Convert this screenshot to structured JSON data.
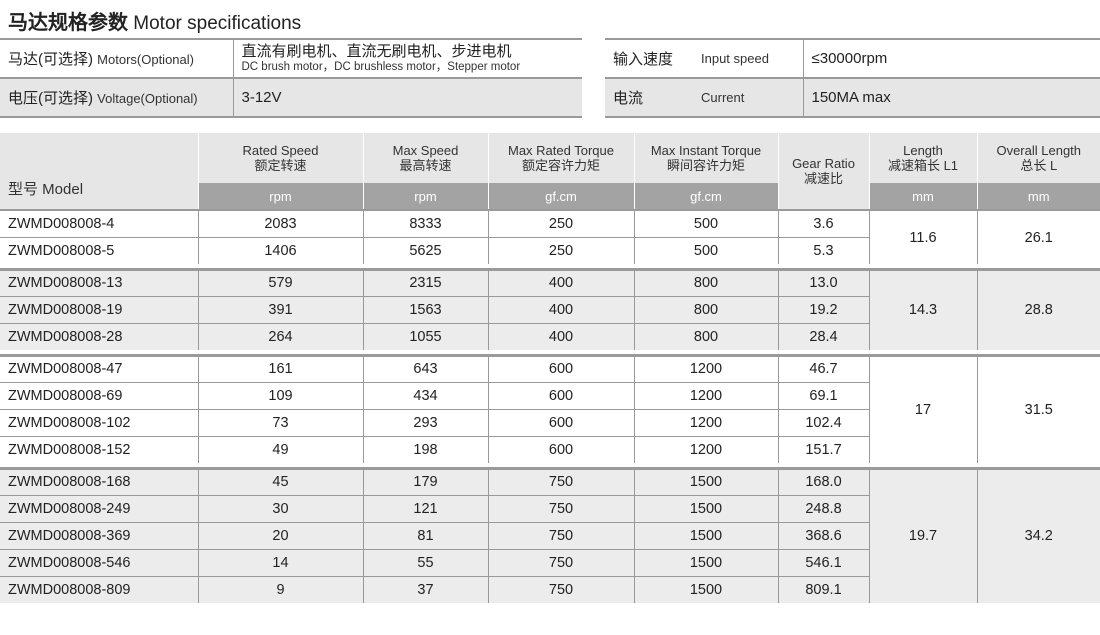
{
  "title": {
    "cn": "马达规格参数",
    "en": "Motor specifications"
  },
  "specs_left": [
    {
      "label_cn": "马达(可选择)",
      "label_en": "Motors(Optional)",
      "value_cn": "直流有刷电机、直流无刷电机、步进电机",
      "value_en": "DC brush motor，DC brushless motor，Stepper motor"
    },
    {
      "label_cn": "电压(可选择)",
      "label_en": "Voltage(Optional)",
      "value": "3-12V"
    }
  ],
  "specs_right": [
    {
      "label_cn": "输入速度",
      "label_en": "Input speed",
      "value": "≤30000rpm"
    },
    {
      "label_cn": "电流",
      "label_en": "Current",
      "value": "150MA max"
    }
  ],
  "table": {
    "model_header": "型号 Model",
    "columns": [
      {
        "en": "Rated Speed",
        "cn": "额定转速",
        "unit": "rpm"
      },
      {
        "en": "Max Speed",
        "cn": "最高转速",
        "unit": "rpm"
      },
      {
        "en": "Max Rated Torque",
        "cn": "额定容许力矩",
        "unit": "gf.cm"
      },
      {
        "en": "Max Instant Torque",
        "cn": "瞬间容许力矩",
        "unit": "gf.cm"
      },
      {
        "en": "Gear Ratio",
        "cn": "减速比",
        "unit": ""
      },
      {
        "en": "Length",
        "cn": "减速箱长 L1",
        "unit": "mm"
      },
      {
        "en": "Overall Length",
        "cn": "总长 L",
        "unit": "mm"
      }
    ],
    "groups": [
      {
        "length": "11.6",
        "overall": "26.1",
        "rows": [
          [
            "ZWMD008008-4",
            "2083",
            "8333",
            "250",
            "500",
            "3.6"
          ],
          [
            "ZWMD008008-5",
            "1406",
            "5625",
            "250",
            "500",
            "5.3"
          ]
        ]
      },
      {
        "length": "14.3",
        "overall": "28.8",
        "rows": [
          [
            "ZWMD008008-13",
            "579",
            "2315",
            "400",
            "800",
            "13.0"
          ],
          [
            "ZWMD008008-19",
            "391",
            "1563",
            "400",
            "800",
            "19.2"
          ],
          [
            "ZWMD008008-28",
            "264",
            "1055",
            "400",
            "800",
            "28.4"
          ]
        ]
      },
      {
        "length": "17",
        "overall": "31.5",
        "rows": [
          [
            "ZWMD008008-47",
            "161",
            "643",
            "600",
            "1200",
            "46.7"
          ],
          [
            "ZWMD008008-69",
            "109",
            "434",
            "600",
            "1200",
            "69.1"
          ],
          [
            "ZWMD008008-102",
            "73",
            "293",
            "600",
            "1200",
            "102.4"
          ],
          [
            "ZWMD008008-152",
            "49",
            "198",
            "600",
            "1200",
            "151.7"
          ]
        ]
      },
      {
        "length": "19.7",
        "overall": "34.2",
        "rows": [
          [
            "ZWMD008008-168",
            "45",
            "179",
            "750",
            "1500",
            "168.0"
          ],
          [
            "ZWMD008008-249",
            "30",
            "121",
            "750",
            "1500",
            "248.8"
          ],
          [
            "ZWMD008008-369",
            "20",
            "81",
            "750",
            "1500",
            "368.6"
          ],
          [
            "ZWMD008008-546",
            "14",
            "55",
            "750",
            "1500",
            "546.1"
          ],
          [
            "ZWMD008008-809",
            "9",
            "37",
            "750",
            "1500",
            "809.1"
          ]
        ]
      }
    ]
  }
}
